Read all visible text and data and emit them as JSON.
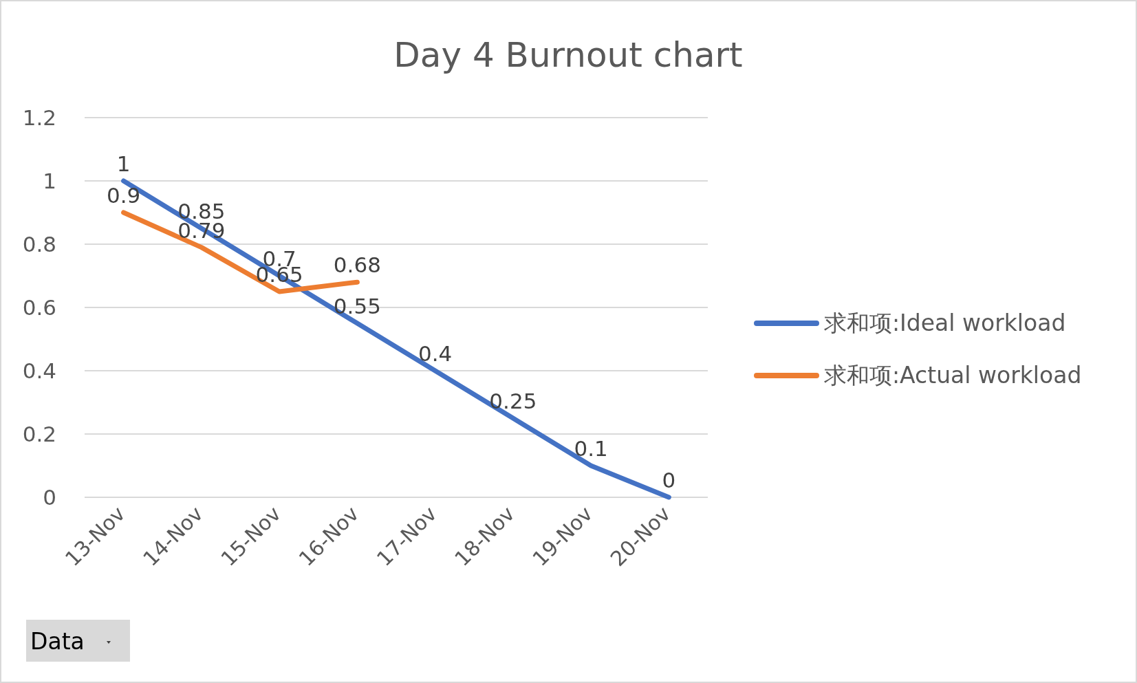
{
  "chart_data": {
    "type": "line",
    "title": "Day 4 Burnout chart",
    "categories": [
      "13-Nov",
      "14-Nov",
      "15-Nov",
      "16-Nov",
      "17-Nov",
      "18-Nov",
      "19-Nov",
      "20-Nov"
    ],
    "series": [
      {
        "name": "求和项:Ideal workload",
        "color": "#4472c4",
        "values": [
          1,
          0.85,
          0.7,
          0.55,
          0.4,
          0.25,
          0.1,
          0
        ]
      },
      {
        "name": "求和项:Actual workload",
        "color": "#ed7d31",
        "values": [
          0.9,
          0.79,
          0.65,
          0.68,
          null,
          null,
          null,
          null
        ]
      }
    ],
    "ylim": [
      0,
      1.2
    ],
    "yticks": [
      0,
      0.2,
      0.4,
      0.6,
      0.8,
      1,
      1.2
    ],
    "grid": "y",
    "legend": "right",
    "data_labels": true,
    "marker": "none",
    "line_style": "solid",
    "annotations": [
      "Data"
    ]
  }
}
